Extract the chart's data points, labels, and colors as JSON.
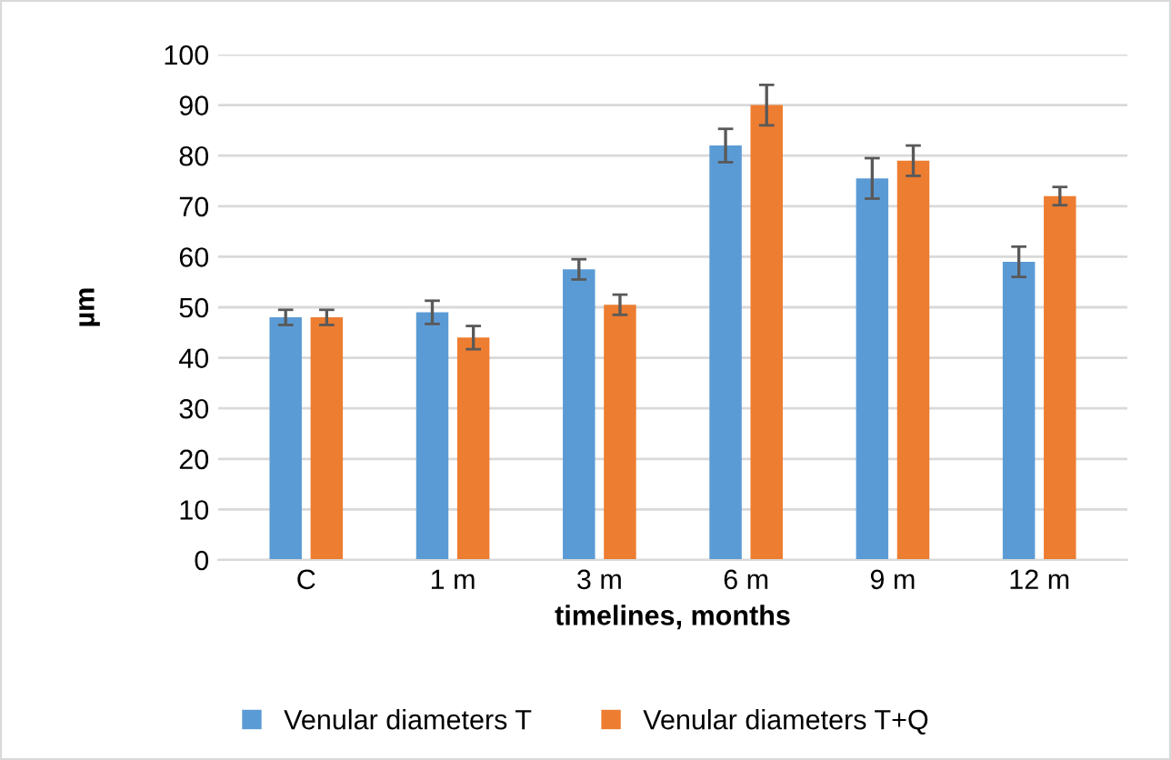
{
  "chart_data": {
    "type": "bar",
    "xlabel": "timelines, months",
    "ylabel": "µm",
    "categories": [
      "C",
      "1 m",
      "3 m",
      "6 m",
      "9 m",
      "12 m"
    ],
    "series": [
      {
        "name": "Venular diameters T",
        "color": "#5b9bd5",
        "values": [
          48,
          49,
          57.5,
          82,
          75.5,
          59
        ],
        "errors": [
          1.5,
          2.3,
          2,
          3.3,
          4,
          3
        ]
      },
      {
        "name": "Venular diameters T+Q",
        "color": "#ed7d31",
        "values": [
          48,
          44,
          50.5,
          90,
          79,
          72
        ],
        "errors": [
          1.5,
          2.3,
          2,
          4,
          3,
          1.8
        ]
      }
    ],
    "ylim": [
      0,
      100
    ],
    "yticks": [
      0,
      10,
      20,
      30,
      40,
      50,
      60,
      70,
      80,
      90,
      100
    ],
    "grid": "y",
    "legend": "bottom"
  }
}
